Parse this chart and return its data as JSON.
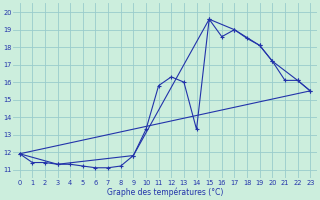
{
  "xlabel": "Graphe des températures (°C)",
  "bg_color": "#cceedd",
  "line_color": "#2233aa",
  "grid_color": "#99cccc",
  "xlim": [
    -0.5,
    23.5
  ],
  "ylim": [
    10.5,
    20.5
  ],
  "yticks": [
    11,
    12,
    13,
    14,
    15,
    16,
    17,
    18,
    19,
    20
  ],
  "xticks": [
    0,
    1,
    2,
    3,
    4,
    5,
    6,
    7,
    8,
    9,
    10,
    11,
    12,
    13,
    14,
    15,
    16,
    17,
    18,
    19,
    20,
    21,
    22,
    23
  ],
  "series1_x": [
    0,
    1,
    2,
    3,
    4,
    5,
    6,
    7,
    8,
    9,
    10,
    11,
    12,
    13,
    14,
    15,
    16,
    17,
    18,
    19,
    20,
    21,
    22,
    23
  ],
  "series1_y": [
    11.9,
    11.4,
    11.4,
    11.3,
    11.3,
    11.2,
    11.1,
    11.1,
    11.2,
    11.8,
    13.3,
    15.8,
    16.3,
    16.0,
    13.3,
    19.6,
    18.6,
    19.0,
    18.5,
    18.1,
    17.2,
    16.1,
    16.1,
    15.5
  ],
  "series2_x": [
    0,
    23
  ],
  "series2_y": [
    11.9,
    15.5
  ],
  "series3_x": [
    0,
    3,
    9,
    15,
    17,
    19,
    20,
    22,
    23
  ],
  "series3_y": [
    11.9,
    11.3,
    11.8,
    19.6,
    19.0,
    18.1,
    17.2,
    16.1,
    15.5
  ]
}
